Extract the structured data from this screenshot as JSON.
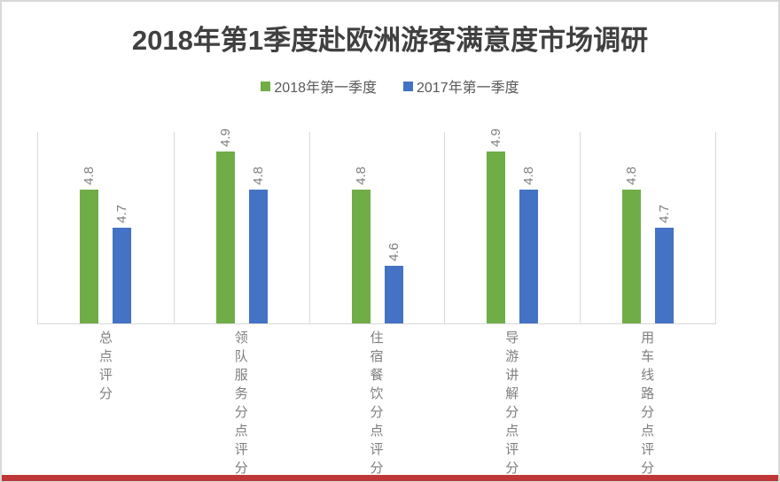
{
  "title": "2018年第1季度赴欧洲游客满意度市场调研",
  "legend": [
    {
      "label": "2018年第一季度",
      "color": "#70ad47"
    },
    {
      "label": "2017年第一季度",
      "color": "#4472c4"
    }
  ],
  "chart_data": {
    "type": "bar",
    "title": "2018年第1季度赴欧洲游客满意度市场调研",
    "categories": [
      "总点评分",
      "领队服务分点评分",
      "住宿餐饮分点评分",
      "导游讲解分点评分",
      "用车线路分点评分"
    ],
    "series": [
      {
        "name": "2018年第一季度",
        "color": "#70ad47",
        "values": [
          4.8,
          4.9,
          4.8,
          4.9,
          4.8
        ]
      },
      {
        "name": "2017年第一季度",
        "color": "#4472c4",
        "values": [
          4.7,
          4.8,
          4.6,
          4.8,
          4.7
        ]
      }
    ],
    "xlabel": "",
    "ylabel": "",
    "ylim": [
      4.45,
      4.95
    ],
    "grid": "vertical-category-separators-only",
    "y_axis_visible": false,
    "legend_position": "top",
    "data_labels": true,
    "data_label_rotation": -90,
    "category_label_orientation": "vertical-upright"
  },
  "colors": {
    "series_2018": "#70ad47",
    "series_2017": "#4472c4",
    "title_text": "#404040",
    "legend_text": "#595959",
    "axis_labels": "#7f7f7f",
    "gridline": "#d9d9d9",
    "page_border": "#d9d9d9",
    "bottom_accent": "#bf3737",
    "background": "#ffffff"
  }
}
